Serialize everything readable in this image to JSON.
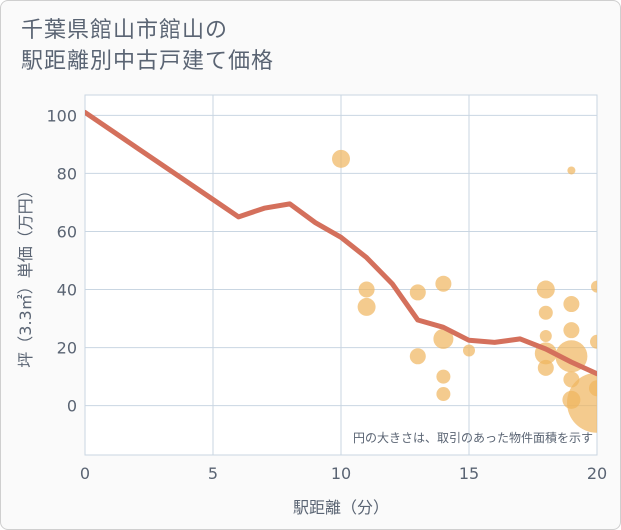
{
  "title": {
    "line1": "千葉県館山市館山の",
    "line2": "駅距離別中古戸建て価格"
  },
  "colors": {
    "line": "#d4705c",
    "bubble": "#f0b55e",
    "grid": "#c9d6e2",
    "text": "#5a6473",
    "plot_bg": "#ffffff"
  },
  "chart_data": {
    "type": "scatter",
    "title": "千葉県館山市館山の駅距離別中古戸建て価格",
    "xlabel": "駅距離（分）",
    "ylabel": "坪（3.3㎡）単価（万円）",
    "xlim": [
      0,
      20
    ],
    "ylim": [
      -17,
      107
    ],
    "xticks": [
      0,
      5,
      10,
      15,
      20
    ],
    "yticks": [
      0,
      20,
      40,
      60,
      80,
      100
    ],
    "note": "円の大きさは、取引のあった物件面積を示す",
    "trend_line": {
      "x": [
        0,
        1,
        2,
        3,
        4,
        5,
        6,
        7,
        8,
        9,
        10,
        11,
        12,
        13,
        14,
        15,
        16,
        17,
        18,
        19,
        20
      ],
      "y": [
        101,
        95,
        89,
        83,
        77,
        71,
        65,
        68,
        69.5,
        63,
        58,
        51,
        42,
        29.5,
        27,
        22.5,
        21.8,
        23,
        19.5,
        15,
        11
      ]
    },
    "points": [
      {
        "x": 10,
        "y": 85,
        "size": 9
      },
      {
        "x": 11,
        "y": 40,
        "size": 8
      },
      {
        "x": 11,
        "y": 34,
        "size": 9
      },
      {
        "x": 13,
        "y": 39,
        "size": 8
      },
      {
        "x": 13,
        "y": 17,
        "size": 8
      },
      {
        "x": 14,
        "y": 42,
        "size": 8
      },
      {
        "x": 14,
        "y": 23,
        "size": 10
      },
      {
        "x": 14,
        "y": 10,
        "size": 7
      },
      {
        "x": 14,
        "y": 4,
        "size": 7
      },
      {
        "x": 15,
        "y": 19,
        "size": 6
      },
      {
        "x": 18,
        "y": 40,
        "size": 9
      },
      {
        "x": 18,
        "y": 32,
        "size": 7
      },
      {
        "x": 18,
        "y": 24,
        "size": 6
      },
      {
        "x": 18,
        "y": 18,
        "size": 11
      },
      {
        "x": 18,
        "y": 13,
        "size": 8
      },
      {
        "x": 19,
        "y": 81,
        "size": 4
      },
      {
        "x": 19,
        "y": 35,
        "size": 8
      },
      {
        "x": 19,
        "y": 26,
        "size": 8
      },
      {
        "x": 19,
        "y": 17,
        "size": 16
      },
      {
        "x": 19,
        "y": 9,
        "size": 8
      },
      {
        "x": 19,
        "y": 2,
        "size": 9
      },
      {
        "x": 20,
        "y": 41,
        "size": 6
      },
      {
        "x": 20,
        "y": 22,
        "size": 7
      },
      {
        "x": 20,
        "y": 6,
        "size": 8
      },
      {
        "x": 20,
        "y": 1,
        "size": 30
      }
    ]
  }
}
